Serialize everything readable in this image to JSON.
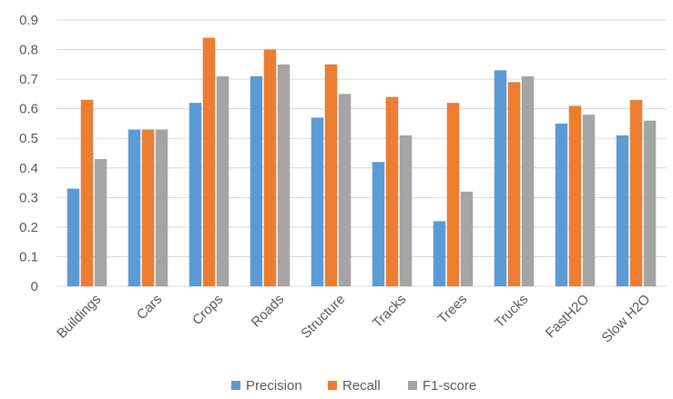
{
  "chart_data": {
    "type": "bar",
    "categories": [
      "Buildings",
      "Cars",
      "Crops",
      "Roads",
      "Structure",
      "Tracks",
      "Trees",
      "Trucks",
      "FastH2O",
      "Slow H2O"
    ],
    "series": [
      {
        "name": "Precision",
        "color": "#5b9bd5",
        "values": [
          0.33,
          0.53,
          0.62,
          0.71,
          0.57,
          0.42,
          0.22,
          0.73,
          0.55,
          0.51
        ]
      },
      {
        "name": "Recall",
        "color": "#ed7d31",
        "values": [
          0.63,
          0.53,
          0.84,
          0.8,
          0.75,
          0.64,
          0.62,
          0.69,
          0.61,
          0.63
        ]
      },
      {
        "name": "F1-score",
        "color": "#a5a5a5",
        "values": [
          0.43,
          0.53,
          0.71,
          0.75,
          0.65,
          0.51,
          0.32,
          0.71,
          0.58,
          0.56
        ]
      }
    ],
    "yticks": [
      "0",
      "0.1",
      "0.2",
      "0.3",
      "0.4",
      "0.5",
      "0.6",
      "0.7",
      "0.8",
      "0.9"
    ],
    "ylim": [
      0,
      0.9
    ],
    "grid": true,
    "legend_position": "bottom"
  }
}
